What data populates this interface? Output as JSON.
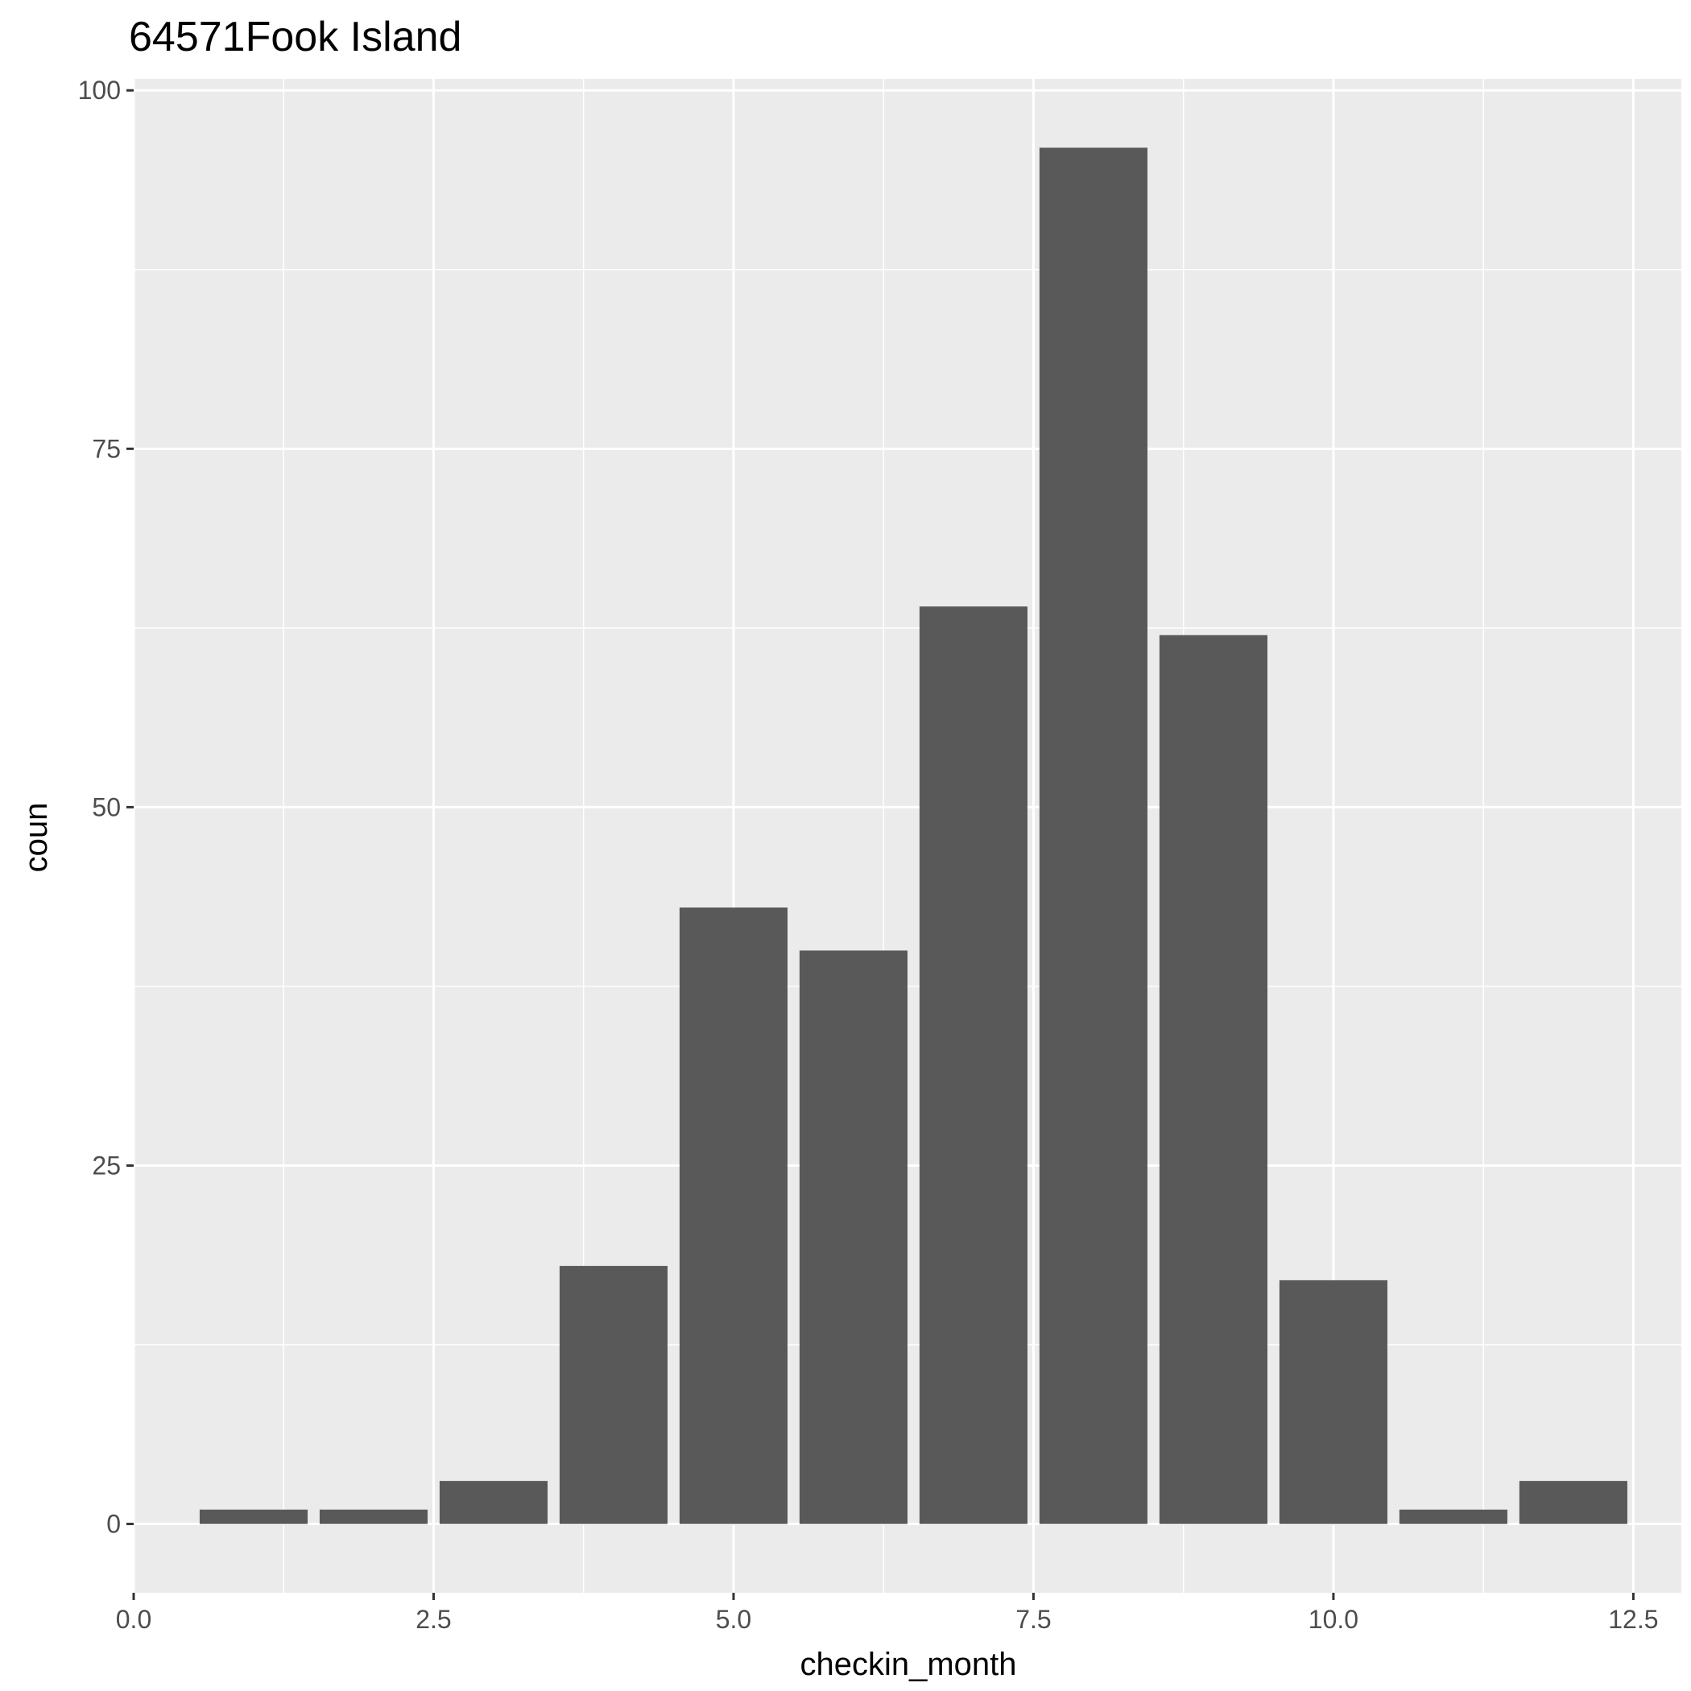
{
  "chart_data": {
    "type": "bar",
    "title": "64571Fook Island",
    "xlabel": "checkin_month",
    "ylabel": "coun",
    "x": [
      1,
      2,
      3,
      4,
      5,
      6,
      7,
      8,
      9,
      10,
      11,
      12
    ],
    "values": [
      1,
      1,
      3,
      18,
      43,
      40,
      64,
      96,
      62,
      17,
      1,
      3
    ],
    "xlim": [
      0,
      12.9
    ],
    "ylim": [
      -4.8,
      100.8
    ],
    "x_ticks": [
      0,
      2.5,
      5,
      7.5,
      10,
      12.5
    ],
    "x_tick_labels": [
      "0.0",
      "2.5",
      "5.0",
      "7.5",
      "10.0",
      "12.5"
    ],
    "y_ticks": [
      0,
      25,
      50,
      75,
      100
    ],
    "y_tick_labels": [
      "0",
      "25",
      "50",
      "75",
      "100"
    ],
    "grid": true,
    "bar_width": 0.9,
    "colors": {
      "panel_background": "#ebebeb",
      "grid_major": "#ffffff",
      "bar_fill": "#595959",
      "tick_text": "#4d4d4d",
      "tick_mark": "#333333"
    }
  }
}
